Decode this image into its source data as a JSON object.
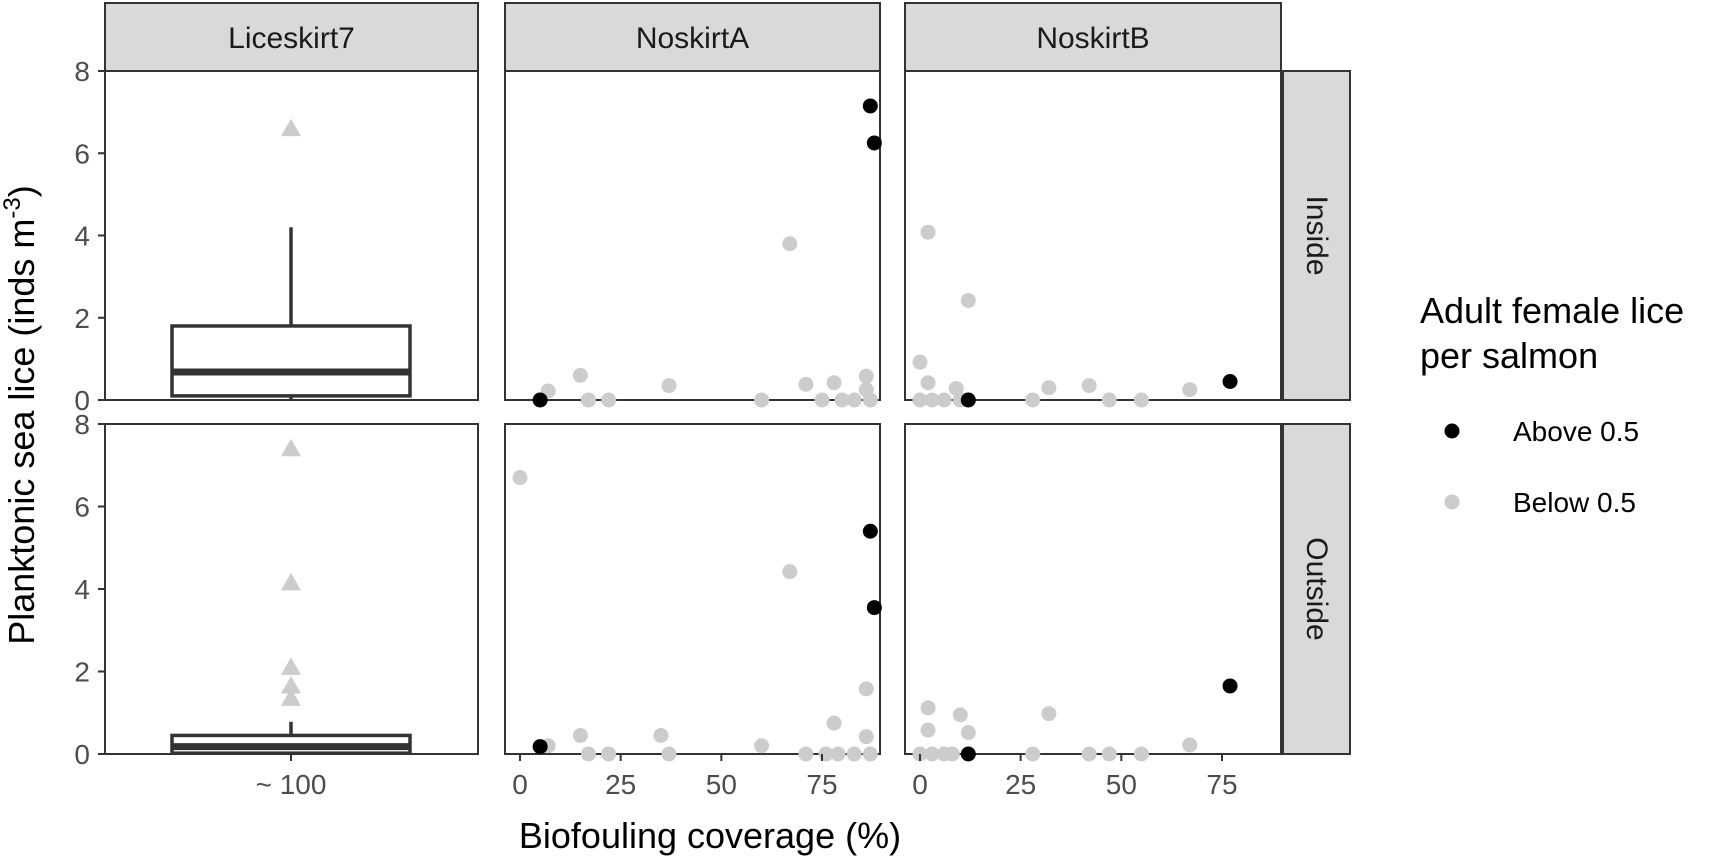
{
  "chart_data": {
    "type": "scatter",
    "facet_cols": [
      "Liceskirt7",
      "NoskirtA",
      "NoskirtB"
    ],
    "facet_rows": [
      "Inside",
      "Outside"
    ],
    "xlabel": "Biofouling coverage (%)",
    "ylabel_main": "Planktonic sea lice (inds m",
    "ylabel_sup": "-3",
    "ylabel_end": ")",
    "ylim": [
      0,
      8
    ],
    "yticks": [
      0,
      2,
      4,
      6,
      8
    ],
    "xticks": [
      0,
      25,
      50,
      75
    ],
    "liceskirt_xtick": "~ 100",
    "legend": {
      "title_line1": "Adult female lice",
      "title_line2": "per salmon",
      "entries": [
        {
          "label": "Above 0.5",
          "color": "#000000"
        },
        {
          "label": "Below 0.5",
          "color": "#cccccc"
        }
      ]
    },
    "colors": {
      "above": "#000000",
      "below": "#cccccc",
      "strip": "#d9d9d9",
      "frame": "#333333"
    },
    "boxplots": {
      "Inside": {
        "min": 0,
        "q1": 0.1,
        "median": 0.68,
        "q3": 1.8,
        "whisker_high": 4.2,
        "outliers": [
          6.6
        ]
      },
      "Outside": {
        "min": 0,
        "q1": 0.02,
        "median": 0.18,
        "q3": 0.45,
        "whisker_high": 0.78,
        "outliers": [
          7.4,
          4.15,
          2.1,
          1.65,
          1.35
        ]
      }
    },
    "points": {
      "NoskirtA": {
        "Inside": [
          {
            "x": 87,
            "y": 7.15,
            "g": "above"
          },
          {
            "x": 88,
            "y": 6.25,
            "g": "above"
          },
          {
            "x": 5,
            "y": 0,
            "g": "above"
          },
          {
            "x": 67,
            "y": 3.8,
            "g": "below"
          },
          {
            "x": 15,
            "y": 0.6,
            "g": "below"
          },
          {
            "x": 7,
            "y": 0.22,
            "g": "below"
          },
          {
            "x": 37,
            "y": 0.35,
            "g": "below"
          },
          {
            "x": 71,
            "y": 0.38,
            "g": "below"
          },
          {
            "x": 78,
            "y": 0.42,
            "g": "below"
          },
          {
            "x": 86,
            "y": 0.58,
            "g": "below"
          },
          {
            "x": 86,
            "y": 0.25,
            "g": "below"
          },
          {
            "x": 17,
            "y": 0,
            "g": "below"
          },
          {
            "x": 22,
            "y": 0,
            "g": "below"
          },
          {
            "x": 60,
            "y": 0,
            "g": "below"
          },
          {
            "x": 75,
            "y": 0,
            "g": "below"
          },
          {
            "x": 80,
            "y": 0,
            "g": "below"
          },
          {
            "x": 83,
            "y": 0,
            "g": "below"
          },
          {
            "x": 87,
            "y": 0,
            "g": "below"
          }
        ],
        "Outside": [
          {
            "x": 87,
            "y": 5.4,
            "g": "above"
          },
          {
            "x": 88,
            "y": 3.55,
            "g": "above"
          },
          {
            "x": 5,
            "y": 0.18,
            "g": "above"
          },
          {
            "x": 0,
            "y": 6.7,
            "g": "below"
          },
          {
            "x": 67,
            "y": 4.42,
            "g": "below"
          },
          {
            "x": 86,
            "y": 1.58,
            "g": "below"
          },
          {
            "x": 78,
            "y": 0.75,
            "g": "below"
          },
          {
            "x": 15,
            "y": 0.45,
            "g": "below"
          },
          {
            "x": 35,
            "y": 0.45,
            "g": "below"
          },
          {
            "x": 86,
            "y": 0.42,
            "g": "below"
          },
          {
            "x": 7,
            "y": 0.2,
            "g": "below"
          },
          {
            "x": 60,
            "y": 0.2,
            "g": "below"
          },
          {
            "x": 17,
            "y": 0,
            "g": "below"
          },
          {
            "x": 22,
            "y": 0,
            "g": "below"
          },
          {
            "x": 37,
            "y": 0,
            "g": "below"
          },
          {
            "x": 71,
            "y": 0,
            "g": "below"
          },
          {
            "x": 76,
            "y": 0,
            "g": "below"
          },
          {
            "x": 79,
            "y": 0,
            "g": "below"
          },
          {
            "x": 83,
            "y": 0,
            "g": "below"
          },
          {
            "x": 87,
            "y": 0,
            "g": "below"
          }
        ]
      },
      "NoskirtB": {
        "Inside": [
          {
            "x": 77,
            "y": 0.45,
            "g": "above"
          },
          {
            "x": 12,
            "y": 0,
            "g": "above"
          },
          {
            "x": 2,
            "y": 4.08,
            "g": "below"
          },
          {
            "x": 12,
            "y": 2.42,
            "g": "below"
          },
          {
            "x": 0,
            "y": 0.92,
            "g": "below"
          },
          {
            "x": 2,
            "y": 0.42,
            "g": "below"
          },
          {
            "x": 9,
            "y": 0.28,
            "g": "below"
          },
          {
            "x": 32,
            "y": 0.3,
            "g": "below"
          },
          {
            "x": 42,
            "y": 0.35,
            "g": "below"
          },
          {
            "x": 67,
            "y": 0.25,
            "g": "below"
          },
          {
            "x": 0,
            "y": 0,
            "g": "below"
          },
          {
            "x": 3,
            "y": 0,
            "g": "below"
          },
          {
            "x": 6,
            "y": 0,
            "g": "below"
          },
          {
            "x": 10,
            "y": 0,
            "g": "below"
          },
          {
            "x": 28,
            "y": 0,
            "g": "below"
          },
          {
            "x": 47,
            "y": 0,
            "g": "below"
          },
          {
            "x": 55,
            "y": 0,
            "g": "below"
          }
        ],
        "Outside": [
          {
            "x": 77,
            "y": 1.65,
            "g": "above"
          },
          {
            "x": 12,
            "y": 0,
            "g": "above"
          },
          {
            "x": 2,
            "y": 1.12,
            "g": "below"
          },
          {
            "x": 10,
            "y": 0.95,
            "g": "below"
          },
          {
            "x": 32,
            "y": 0.98,
            "g": "below"
          },
          {
            "x": 2,
            "y": 0.58,
            "g": "below"
          },
          {
            "x": 12,
            "y": 0.52,
            "g": "below"
          },
          {
            "x": 67,
            "y": 0.22,
            "g": "below"
          },
          {
            "x": 0,
            "y": 0,
            "g": "below"
          },
          {
            "x": 3,
            "y": 0,
            "g": "below"
          },
          {
            "x": 6,
            "y": 0,
            "g": "below"
          },
          {
            "x": 8,
            "y": 0,
            "g": "below"
          },
          {
            "x": 28,
            "y": 0,
            "g": "below"
          },
          {
            "x": 42,
            "y": 0,
            "g": "below"
          },
          {
            "x": 47,
            "y": 0,
            "g": "below"
          },
          {
            "x": 55,
            "y": 0,
            "g": "below"
          }
        ]
      }
    }
  }
}
